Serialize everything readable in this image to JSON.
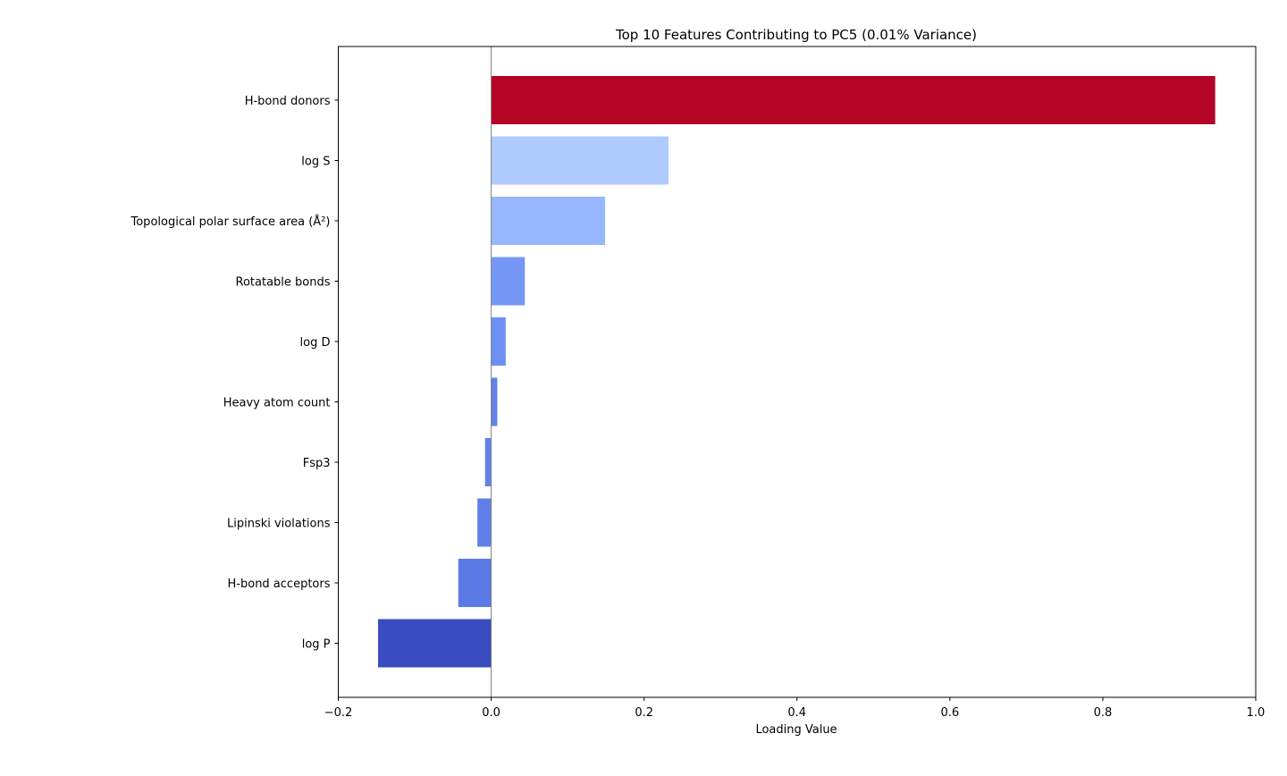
{
  "chart_data": {
    "type": "bar",
    "orientation": "horizontal",
    "title": "Top 10 Features Contributing to PC5 (0.01% Variance)",
    "xlabel": "Loading Value",
    "ylabel": "",
    "xlim": [
      -0.2,
      1.0
    ],
    "xticks": [
      -0.2,
      0.0,
      0.2,
      0.4,
      0.6,
      0.8,
      1.0
    ],
    "xtick_labels": [
      "−0.2",
      "0.0",
      "0.2",
      "0.4",
      "0.6",
      "0.8",
      "1.0"
    ],
    "grid": false,
    "zero_line": true,
    "categories": [
      "H-bond donors",
      "log S",
      "Topological polar surface area (Å²)",
      "Rotatable bonds",
      "log D",
      "Heavy atom count",
      "Fsp3",
      "Lipinski violations",
      "H-bond acceptors",
      "log P"
    ],
    "values": [
      0.947,
      0.232,
      0.149,
      0.044,
      0.019,
      0.008,
      -0.008,
      -0.018,
      -0.043,
      -0.148
    ],
    "colors": [
      "#b40426",
      "#afcafc",
      "#97b8ff",
      "#7597f6",
      "#6c8ff1",
      "#6282ea",
      "#6180e9",
      "#5f7fe8",
      "#5b7ae5",
      "#3b4cc0"
    ]
  }
}
